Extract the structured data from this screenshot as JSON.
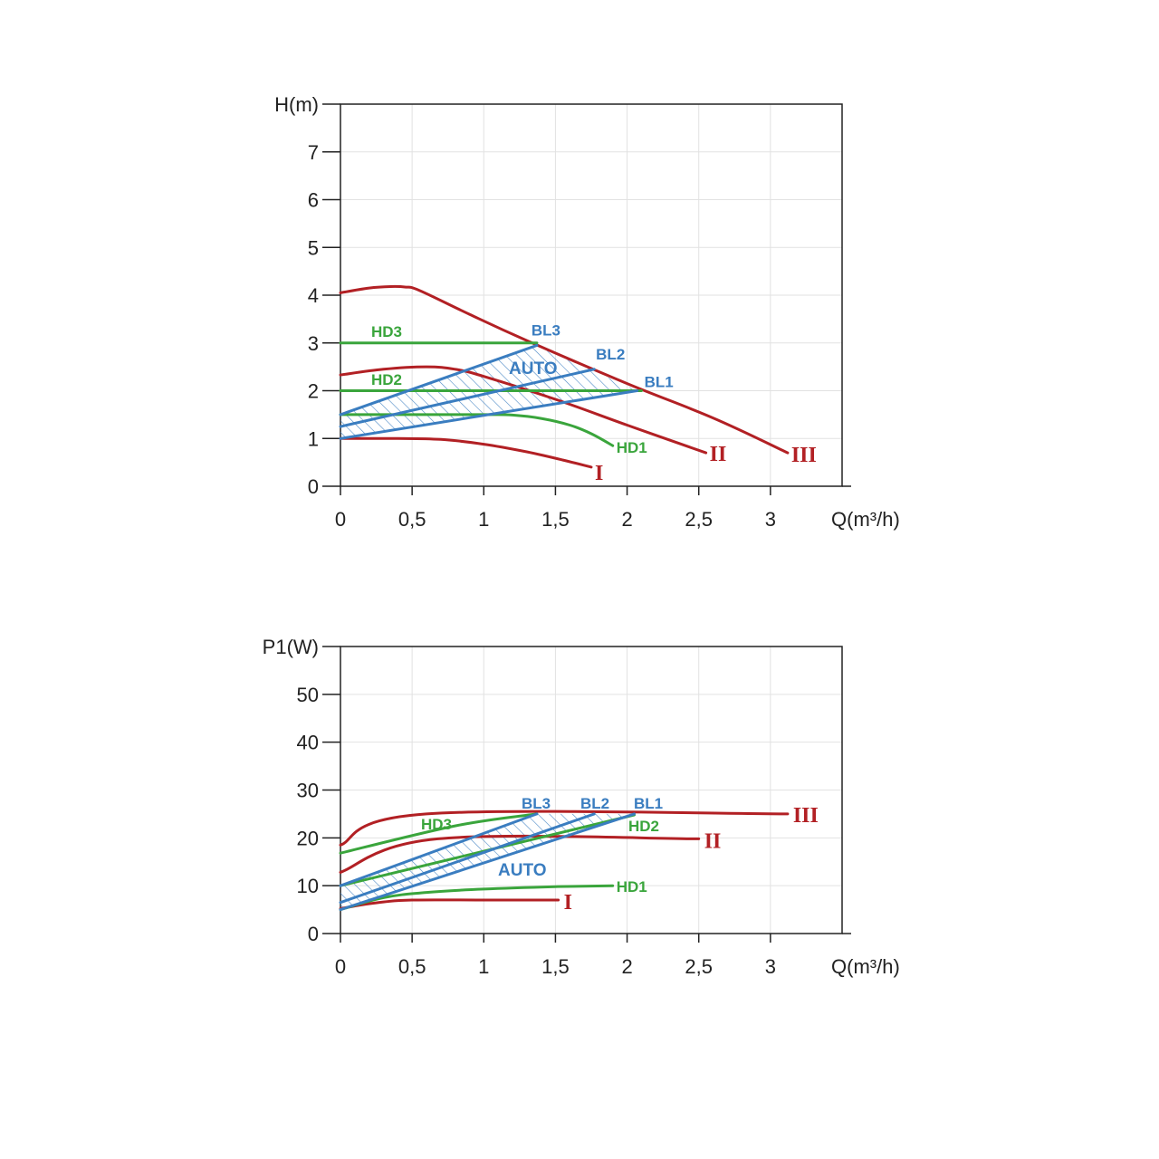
{
  "colors": {
    "red": "#b22024",
    "green": "#3aa53c",
    "blue": "#3a7dc0",
    "grid": "#e2e2e2",
    "axis": "#222222"
  },
  "chart_data": [
    {
      "type": "line",
      "xlabel": "Q(m³/h)",
      "ylabel": "H(m)",
      "xlim": [
        0,
        3.5
      ],
      "ylim": [
        0,
        8
      ],
      "xticks": [
        0,
        0.5,
        1,
        1.5,
        2,
        2.5,
        3
      ],
      "xtick_labels": [
        "0",
        "0,5",
        "1",
        "1,5",
        "2",
        "2,5",
        "3"
      ],
      "yticks": [
        0,
        1,
        2,
        3,
        4,
        5,
        6,
        7
      ],
      "ytick_labels": [
        "0",
        "1",
        "2",
        "3",
        "4",
        "5",
        "6",
        "7"
      ],
      "series": [
        {
          "name": "I",
          "color": "red",
          "label": "I",
          "x": [
            0,
            0.4,
            0.7,
            1.0,
            1.3,
            1.55,
            1.75
          ],
          "y": [
            1.0,
            1.0,
            0.98,
            0.88,
            0.72,
            0.55,
            0.4
          ]
        },
        {
          "name": "II",
          "color": "red",
          "label": "II",
          "x": [
            0,
            0.3,
            0.6,
            0.8,
            1.0,
            1.5,
            2.0,
            2.55
          ],
          "y": [
            2.33,
            2.45,
            2.5,
            2.45,
            2.3,
            1.82,
            1.28,
            0.7
          ]
        },
        {
          "name": "III",
          "color": "red",
          "label": "III",
          "x": [
            0,
            0.2,
            0.35,
            0.45,
            0.55,
            0.9,
            1.3,
            2.0,
            2.6,
            3.12
          ],
          "y": [
            4.05,
            4.15,
            4.18,
            4.17,
            4.1,
            3.6,
            3.05,
            2.15,
            1.43,
            0.7
          ]
        },
        {
          "name": "HD1",
          "color": "green",
          "label": "HD1",
          "x": [
            0,
            0.5,
            1.0,
            1.2,
            1.4,
            1.6,
            1.75,
            1.9
          ],
          "y": [
            1.5,
            1.5,
            1.5,
            1.49,
            1.42,
            1.28,
            1.1,
            0.85
          ]
        },
        {
          "name": "HD2",
          "color": "green",
          "label": "HD2",
          "x": [
            0,
            2.1
          ],
          "y": [
            2.0,
            2.0
          ]
        },
        {
          "name": "HD3",
          "color": "green",
          "label": "HD3",
          "x": [
            0,
            1.37
          ],
          "y": [
            3.0,
            3.0
          ]
        },
        {
          "name": "BL1",
          "color": "blue",
          "label": "BL1",
          "x": [
            0,
            2.07
          ],
          "y": [
            1.0,
            2.0
          ]
        },
        {
          "name": "BL2",
          "color": "blue",
          "label": "BL2",
          "x": [
            0,
            1.77
          ],
          "y": [
            1.25,
            2.45
          ]
        },
        {
          "name": "BL3",
          "color": "blue",
          "label": "BL3",
          "x": [
            0,
            1.37
          ],
          "y": [
            1.5,
            2.95
          ]
        }
      ],
      "auto_region": {
        "label": "AUTO",
        "x": [
          0,
          1.37,
          2.07,
          0
        ],
        "y": [
          1.5,
          2.95,
          2.0,
          1.0
        ]
      }
    },
    {
      "type": "line",
      "xlabel": "Q(m³/h)",
      "ylabel": "P1(W)",
      "xlim": [
        0,
        3.5
      ],
      "ylim": [
        0,
        60
      ],
      "xticks": [
        0,
        0.5,
        1,
        1.5,
        2,
        2.5,
        3
      ],
      "xtick_labels": [
        "0",
        "0,5",
        "1",
        "1,5",
        "2",
        "2,5",
        "3"
      ],
      "yticks": [
        0,
        10,
        20,
        30,
        40,
        50
      ],
      "ytick_labels": [
        "0",
        "10",
        "20",
        "30",
        "40",
        "50"
      ],
      "series": [
        {
          "name": "I",
          "color": "red",
          "label": "I",
          "x": [
            0,
            0.15,
            0.3,
            0.5,
            1.0,
            1.52
          ],
          "y": [
            5.2,
            6.0,
            6.6,
            7.0,
            7.0,
            7.0
          ]
        },
        {
          "name": "II",
          "color": "red",
          "label": "II",
          "x": [
            0,
            0.68,
            2.5
          ],
          "y": [
            12.8,
            19.8,
            19.8
          ]
        },
        {
          "name": "III",
          "color": "red",
          "label": "III",
          "x": [
            0,
            0.6,
            3.12
          ],
          "y": [
            18.5,
            25.0,
            25.0
          ]
        },
        {
          "name": "HD1",
          "color": "green",
          "label": "HD1",
          "x": [
            0,
            0.3,
            0.6,
            1.0,
            1.5,
            1.9
          ],
          "y": [
            5.0,
            7.5,
            8.6,
            9.3,
            9.8,
            10.0
          ]
        },
        {
          "name": "HD2",
          "color": "green",
          "label": "HD2",
          "x": [
            0,
            2.05
          ],
          "y": [
            10.0,
            24.8
          ]
        },
        {
          "name": "HD3",
          "color": "green",
          "label": "HD3",
          "x": [
            0,
            0.8,
            1.37
          ],
          "y": [
            16.8,
            22.5,
            25.0
          ]
        },
        {
          "name": "BL1",
          "color": "blue",
          "label": "BL1",
          "x": [
            0,
            2.05
          ],
          "y": [
            5.0,
            25.0
          ]
        },
        {
          "name": "BL2",
          "color": "blue",
          "label": "BL2",
          "x": [
            0,
            1.77
          ],
          "y": [
            6.5,
            25.0
          ]
        },
        {
          "name": "BL3",
          "color": "blue",
          "label": "BL3",
          "x": [
            0,
            1.37
          ],
          "y": [
            10.0,
            25.0
          ]
        }
      ],
      "auto_region": {
        "label": "AUTO",
        "x": [
          0,
          1.37,
          2.05,
          0
        ],
        "y": [
          10.0,
          25.0,
          25.0,
          5.0
        ]
      }
    }
  ]
}
